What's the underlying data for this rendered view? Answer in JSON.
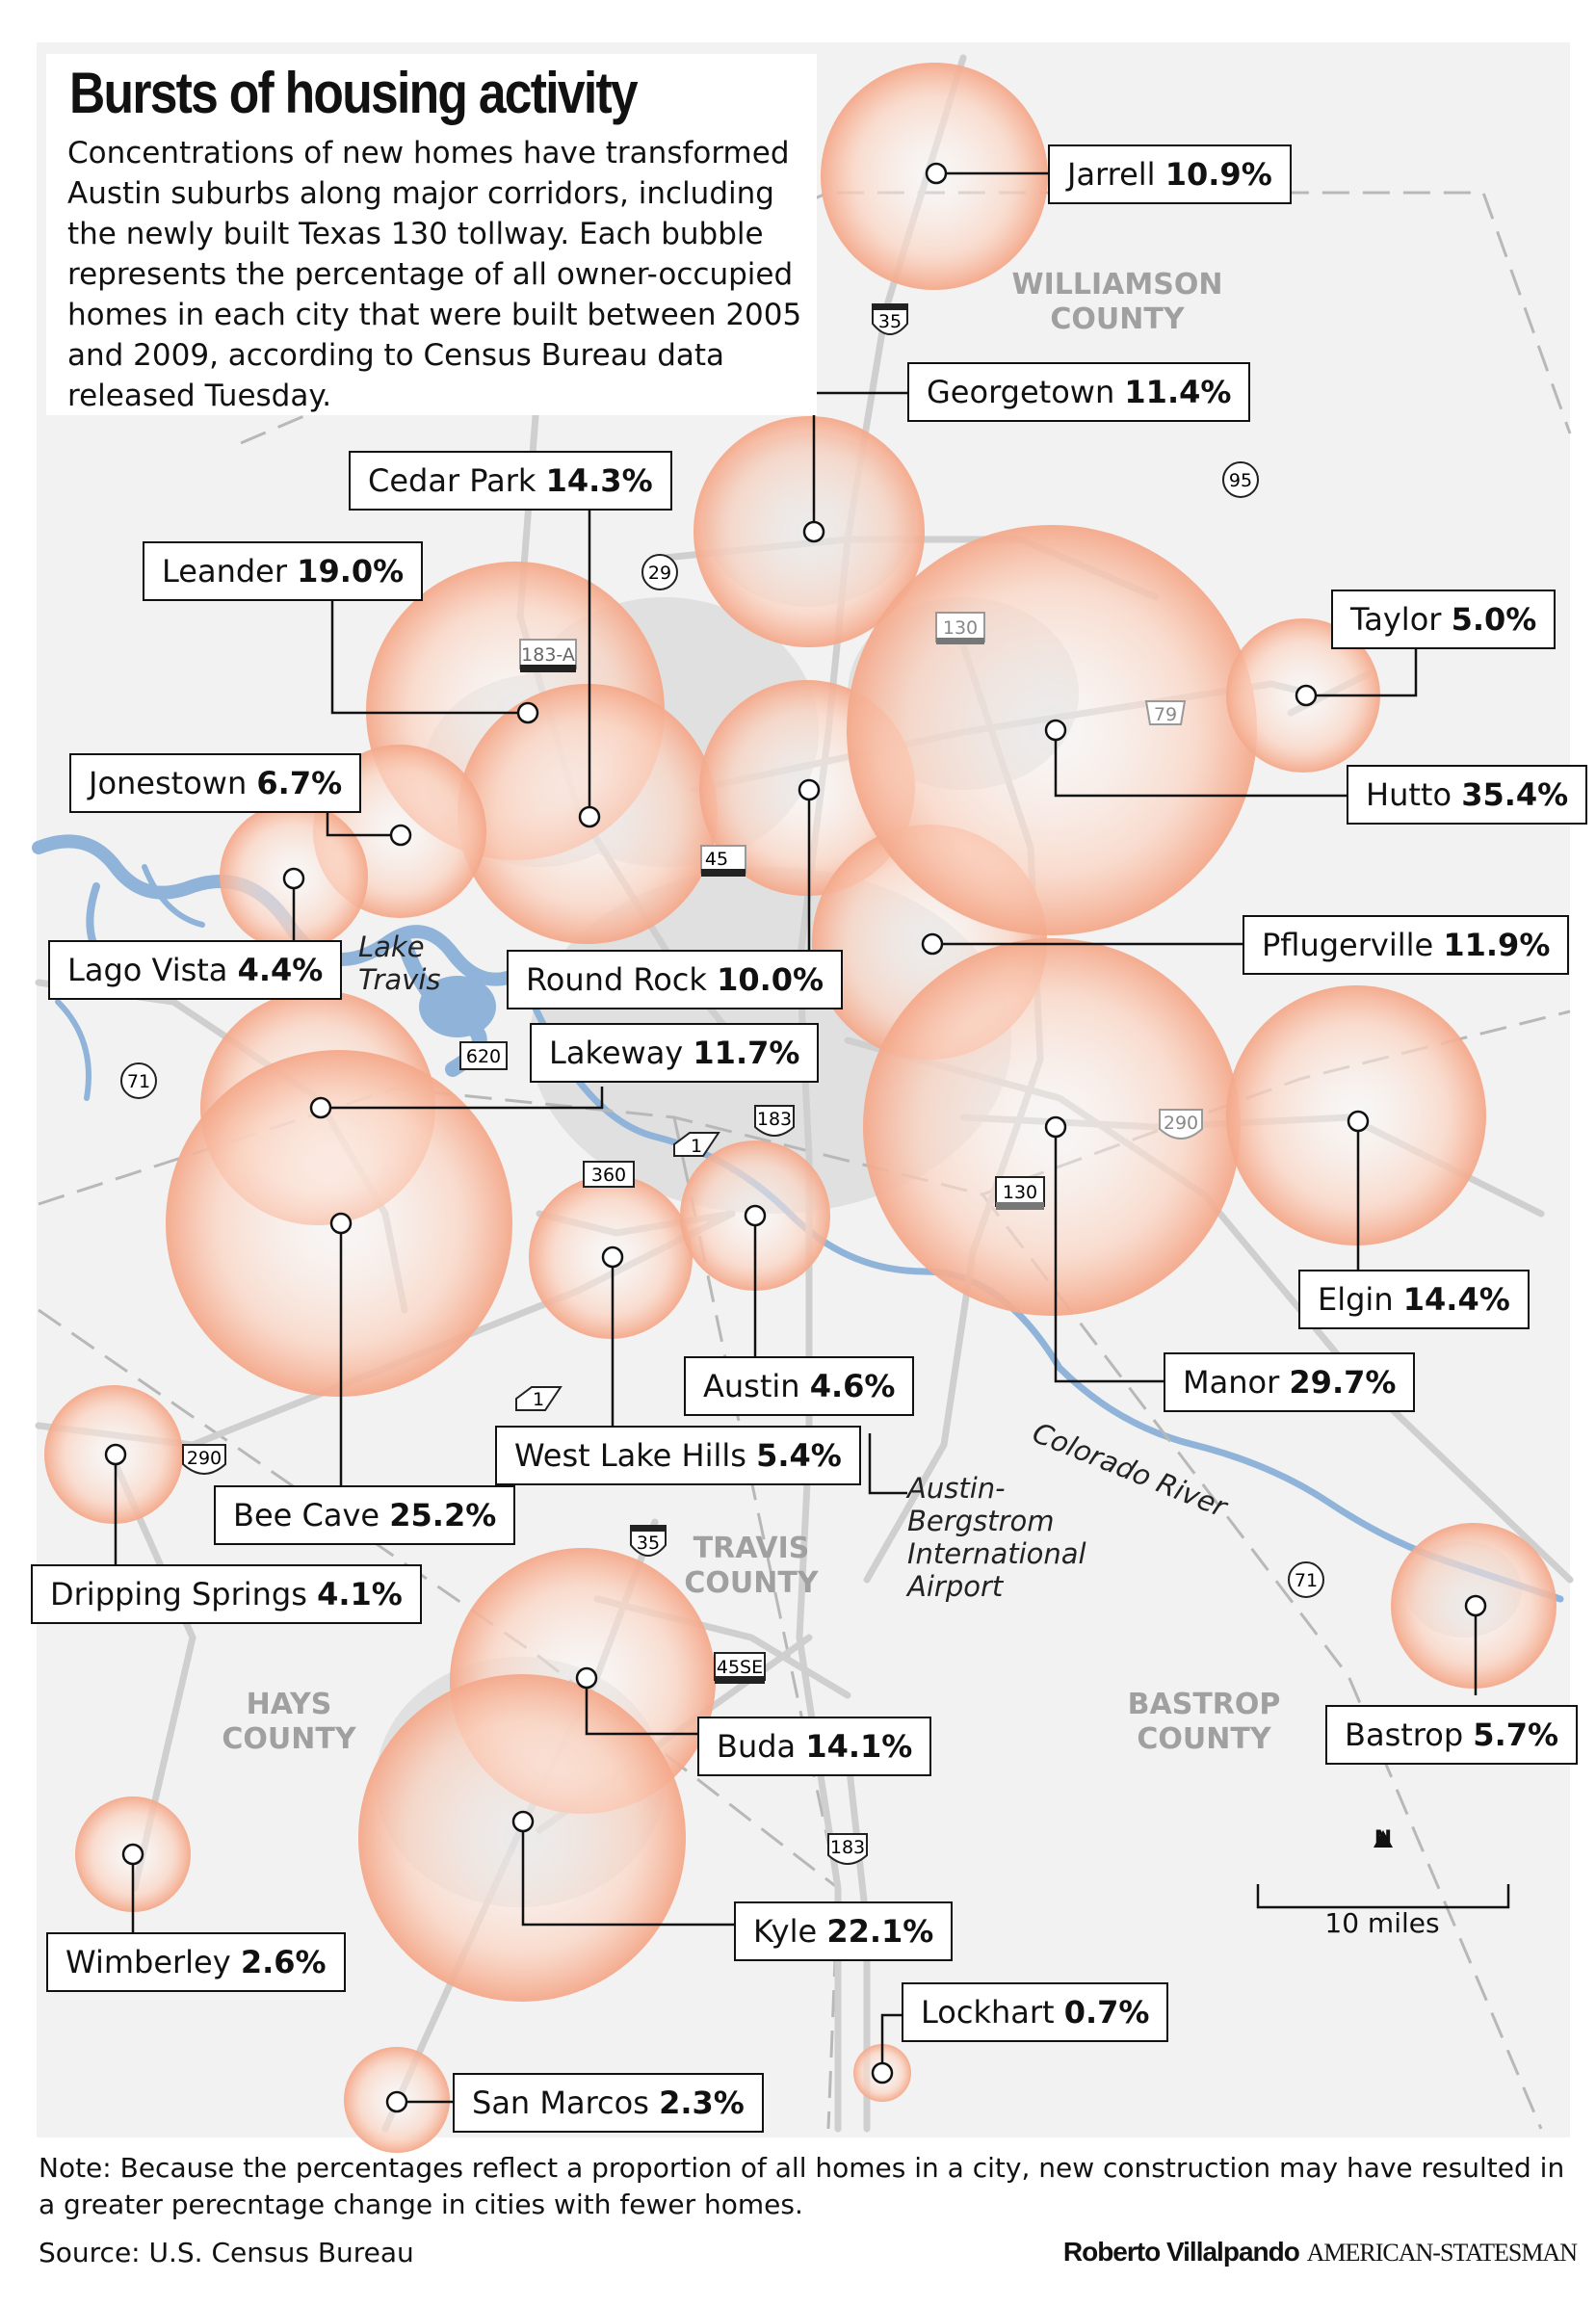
{
  "title": "Bursts of housing activity",
  "intro": "Concentrations of new homes have transformed Austin suburbs along major corridors, including the newly built Texas 130 tollway. Each bubble represents the percentage of all owner-occupied homes in each city that were built between 2005 and 2009, according to Census Bureau data released Tuesday.",
  "colors": {
    "bubble": "#f6b8a0",
    "bubble_edge": "#f4a98c",
    "water": "#8fb3d9",
    "road": "#d4d4d4",
    "county_line": "#b8b8b8"
  },
  "cities": [
    {
      "name": "Jarrell",
      "pct": "10.9%"
    },
    {
      "name": "Georgetown",
      "pct": "11.4%"
    },
    {
      "name": "Cedar Park",
      "pct": "14.3%"
    },
    {
      "name": "Leander",
      "pct": "19.0%"
    },
    {
      "name": "Taylor",
      "pct": "5.0%"
    },
    {
      "name": "Hutto",
      "pct": "35.4%"
    },
    {
      "name": "Jonestown",
      "pct": "6.7%"
    },
    {
      "name": "Pflugerville",
      "pct": "11.9%"
    },
    {
      "name": "Lago Vista",
      "pct": "4.4%"
    },
    {
      "name": "Round Rock",
      "pct": "10.0%"
    },
    {
      "name": "Lakeway",
      "pct": "11.7%"
    },
    {
      "name": "Elgin",
      "pct": "14.4%"
    },
    {
      "name": "Austin",
      "pct": "4.6%"
    },
    {
      "name": "Manor",
      "pct": "29.7%"
    },
    {
      "name": "West Lake Hills",
      "pct": "5.4%"
    },
    {
      "name": "Bee Cave",
      "pct": "25.2%"
    },
    {
      "name": "Dripping Springs",
      "pct": "4.1%"
    },
    {
      "name": "Bastrop",
      "pct": "5.7%"
    },
    {
      "name": "Buda",
      "pct": "14.1%"
    },
    {
      "name": "Kyle",
      "pct": "22.1%"
    },
    {
      "name": "Wimberley",
      "pct": "2.6%"
    },
    {
      "name": "Lockhart",
      "pct": "0.7%"
    },
    {
      "name": "San Marcos",
      "pct": "2.3%"
    }
  ],
  "counties": [
    "WILLIAMSON COUNTY",
    "TRAVIS COUNTY",
    "HAYS COUNTY",
    "BASTROP COUNTY"
  ],
  "water": [
    "Lake Travis",
    "Colorado River"
  ],
  "airport": "Austin-Bergstrom International Airport",
  "highways": [
    "35",
    "95",
    "29",
    "183-A",
    "130",
    "79",
    "45",
    "620",
    "71",
    "183",
    "1",
    "360",
    "290",
    "130",
    "1",
    "290",
    "35",
    "45SE",
    "183",
    "71"
  ],
  "scale": {
    "label": "10 miles",
    "north": "N"
  },
  "note": "Note: Because the percentages reflect a proportion of all homes in a city, new construction may have resulted in a greater perecntage change in cities with fewer homes.",
  "source": "Source: U.S. Census Bureau",
  "credit": {
    "byline": "Roberto Villalpando",
    "paper": "AMERICAN-STATESMAN"
  }
}
